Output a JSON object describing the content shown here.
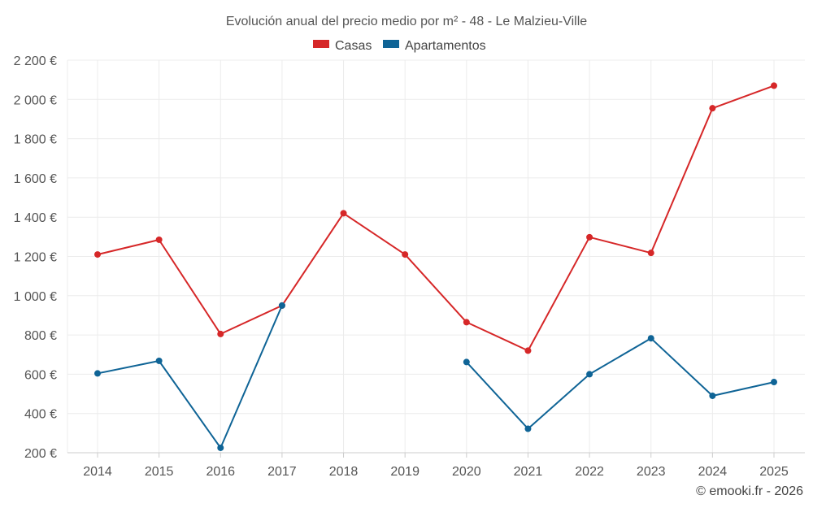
{
  "chart_data": {
    "type": "line",
    "title": "Evolución anual del precio medio por m² - 48 - Le Malzieu-Ville",
    "categories": [
      "2014",
      "2015",
      "2016",
      "2017",
      "2018",
      "2019",
      "2020",
      "2021",
      "2022",
      "2023",
      "2024",
      "2025"
    ],
    "series": [
      {
        "name": "Casas",
        "color": "#d62728",
        "values": [
          1210,
          1285,
          805,
          950,
          1420,
          1210,
          865,
          720,
          1298,
          1218,
          1955,
          2070
        ]
      },
      {
        "name": "Apartamentos",
        "color": "#0f6496",
        "values": [
          604,
          668,
          225,
          950,
          null,
          null,
          662,
          322,
          600,
          783,
          490,
          560
        ]
      }
    ],
    "yticks": [
      "200 €",
      "400 €",
      "600 €",
      "800 €",
      "1 000 €",
      "1 200 €",
      "1 400 €",
      "1 600 €",
      "1 800 €",
      "2 000 €",
      "2 200 €"
    ],
    "ylim": [
      200,
      2200
    ],
    "ytick_step": 200,
    "xlabel": "",
    "ylabel": "",
    "grid": true,
    "legend_position": "top-center",
    "credit": "© emooki.fr - 2026"
  }
}
